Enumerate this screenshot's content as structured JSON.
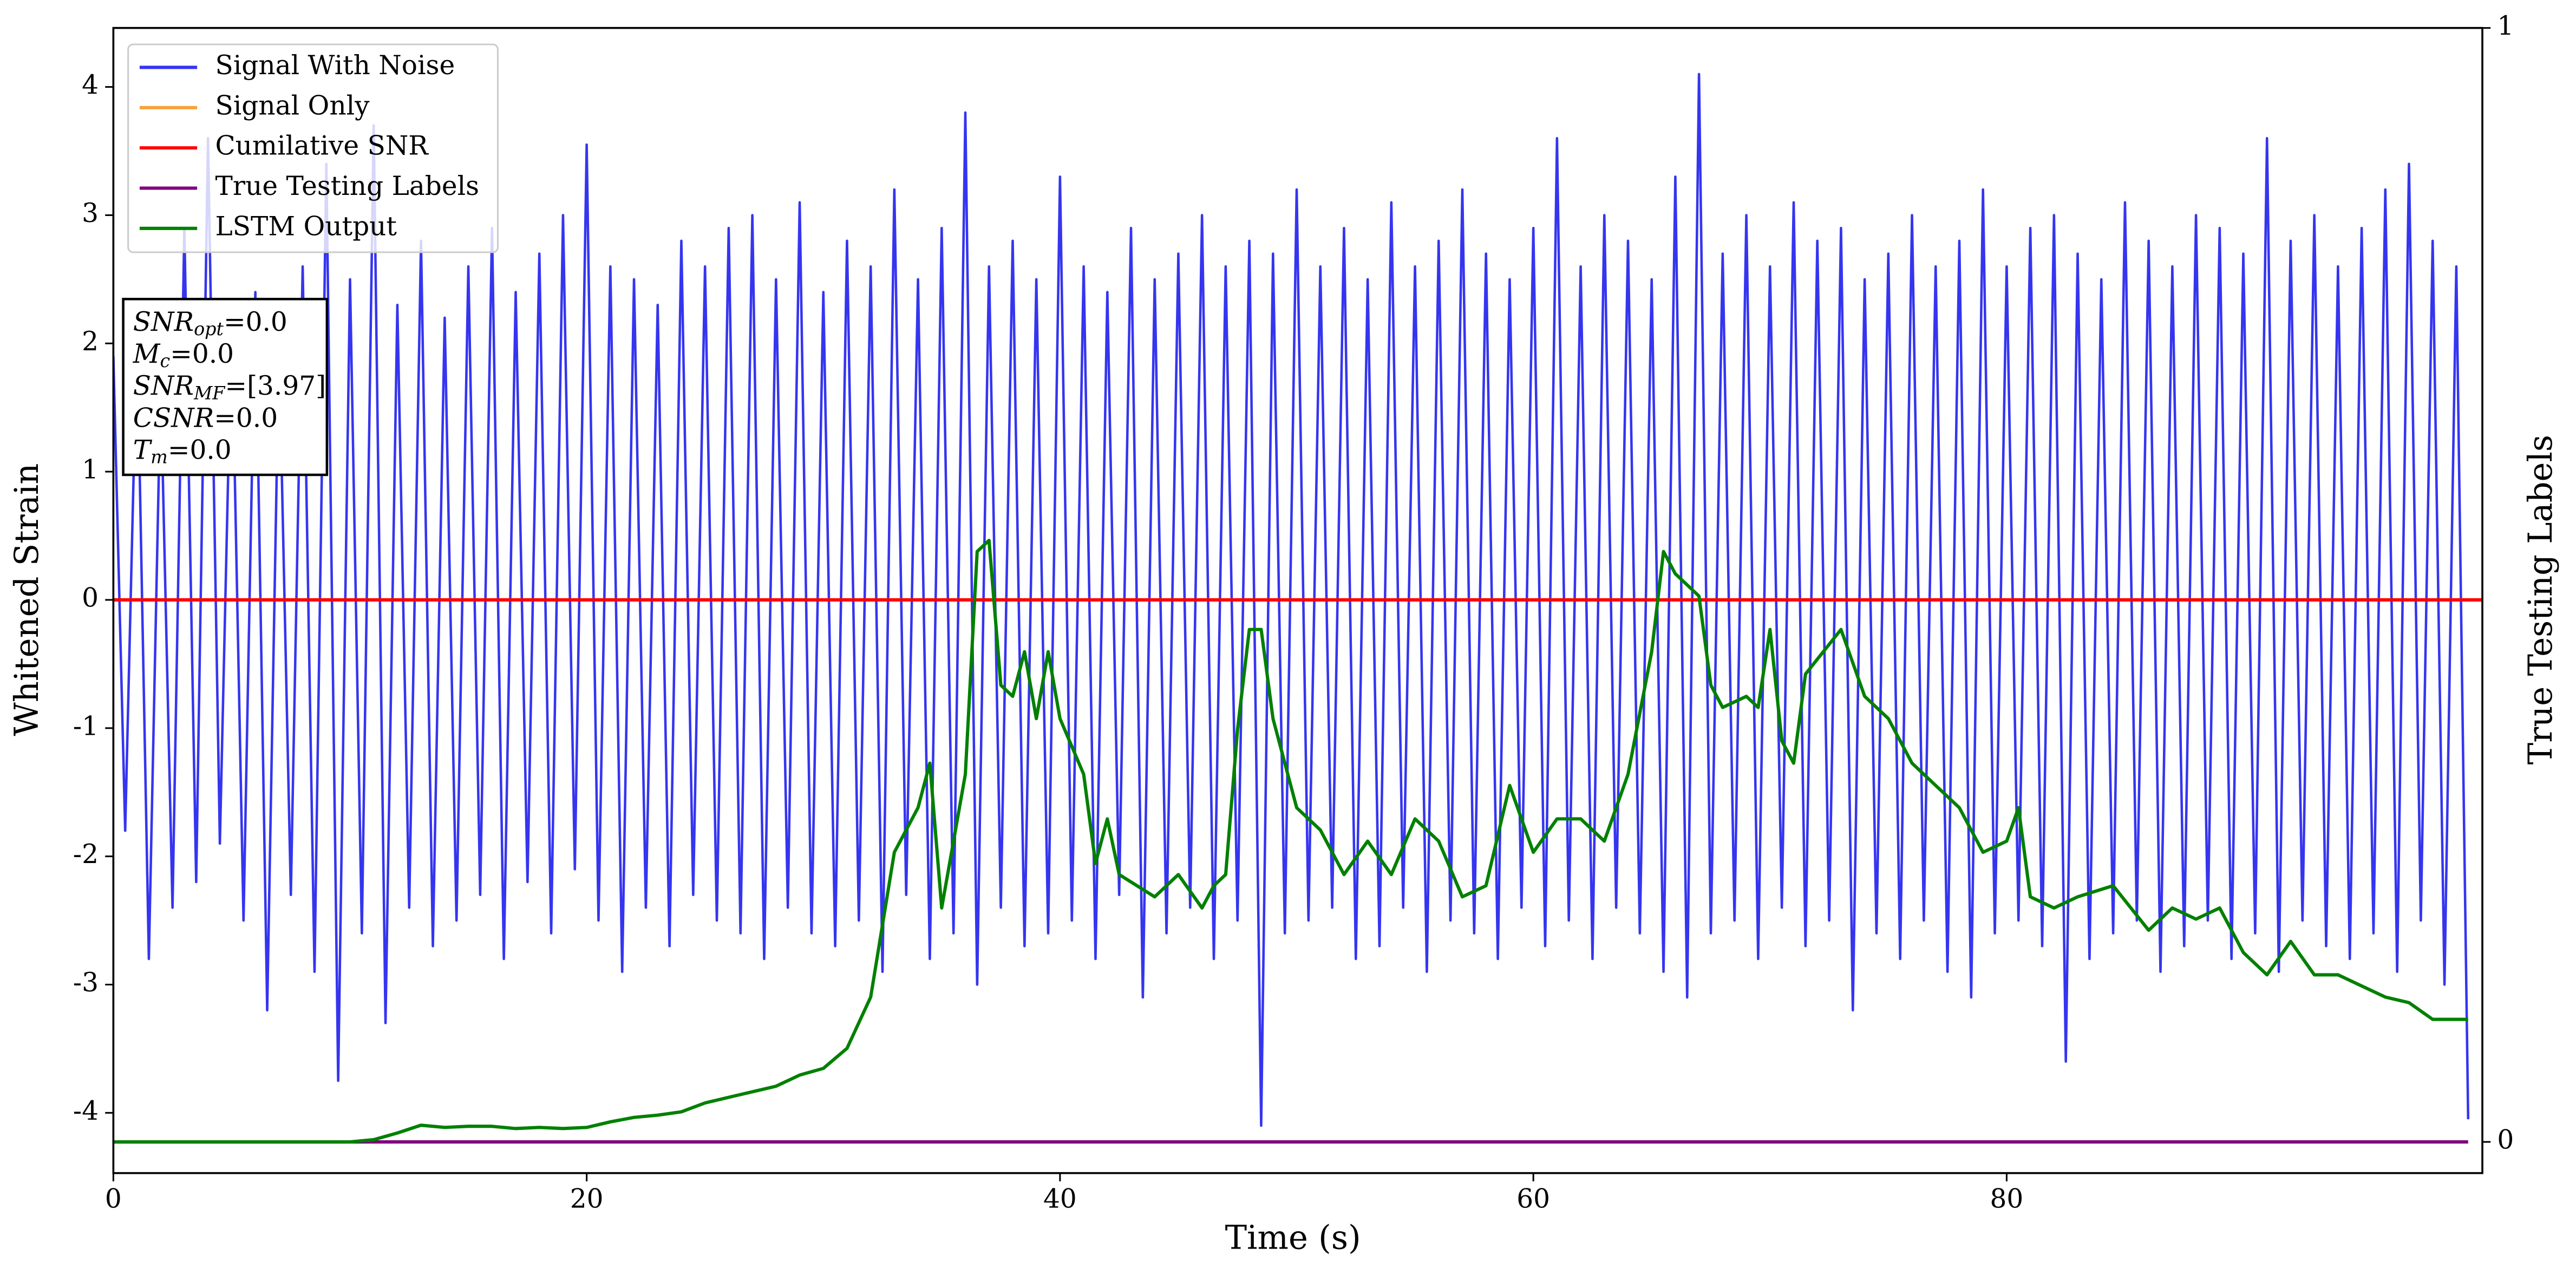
{
  "chart_data": {
    "type": "line",
    "xlabel": "Time (s)",
    "ylabel": "Whitened Strain",
    "y2label": "True Testing Labels",
    "xlim": [
      0,
      100.1
    ],
    "ylim": [
      -4.47,
      4.46
    ],
    "y2lim": [
      -0.028,
      1
    ],
    "xticks": [
      0,
      20,
      40,
      60,
      80
    ],
    "yticks": [
      -4,
      -3,
      -2,
      -1,
      0,
      1,
      2,
      3,
      4
    ],
    "y2ticks": [
      0,
      1
    ],
    "legend": "upper left",
    "annotations": [
      {
        "symbol": "SNR",
        "subscript": "opt",
        "text": "=0.0"
      },
      {
        "symbol": "M",
        "subscript": "c",
        "text": "=0.0"
      },
      {
        "symbol": "SNR",
        "subscript": "MF",
        "text": "=[3.97]"
      },
      {
        "symbol": "CSNR",
        "text": "=0.0"
      },
      {
        "symbol": "T",
        "subscript": "m",
        "text": "=0.0"
      }
    ],
    "series": [
      {
        "name": "Signal With Noise",
        "color": "#3535f0",
        "x": [
          0,
          0.5,
          1,
          1.5,
          2,
          2.5,
          3,
          3.5,
          4,
          4.5,
          5,
          5.5,
          6,
          6.5,
          7,
          7.5,
          8,
          8.5,
          9,
          9.5,
          10,
          10.5,
          11,
          11.5,
          12,
          12.5,
          13,
          13.5,
          14,
          14.5,
          15,
          15.5,
          16,
          16.5,
          17,
          17.5,
          18,
          18.5,
          19,
          19.5,
          20,
          20.5,
          21,
          21.5,
          22,
          22.5,
          23,
          23.5,
          24,
          24.5,
          25,
          25.5,
          26,
          26.5,
          27,
          27.5,
          28,
          28.5,
          29,
          29.5,
          30,
          30.5,
          31,
          31.5,
          32,
          32.5,
          33,
          33.5,
          34,
          34.5,
          35,
          35.5,
          36,
          36.5,
          37,
          37.5,
          38,
          38.5,
          39,
          39.5,
          40,
          40.5,
          41,
          41.5,
          42,
          42.5,
          43,
          43.5,
          44,
          44.5,
          45,
          45.5,
          46,
          46.5,
          47,
          47.5,
          48,
          48.5,
          49,
          49.5,
          50,
          50.5,
          51,
          51.5,
          52,
          52.5,
          53,
          53.5,
          54,
          54.5,
          55,
          55.5,
          56,
          56.5,
          57,
          57.5,
          58,
          58.5,
          59,
          59.5,
          60,
          60.5,
          61,
          61.5,
          62,
          62.5,
          63,
          63.5,
          64,
          64.5,
          65,
          65.5,
          66,
          66.5,
          67,
          67.5,
          68,
          68.5,
          69,
          69.5,
          70,
          70.5,
          71,
          71.5,
          72,
          72.5,
          73,
          73.5,
          74,
          74.5,
          75,
          75.5,
          76,
          76.5,
          77,
          77.5,
          78,
          78.5,
          79,
          79.5,
          80,
          80.5,
          81,
          81.5,
          82,
          82.5,
          83,
          83.5,
          84,
          84.5,
          85,
          85.5,
          86,
          86.5,
          87,
          87.5,
          88,
          88.5,
          89,
          89.5,
          90,
          90.5,
          91,
          91.5,
          92,
          92.5,
          93,
          93.5,
          94,
          94.5,
          95,
          95.5,
          96,
          96.5,
          97,
          97.5,
          98,
          98.5,
          99,
          99.5
        ],
        "values": [
          1.9,
          -1.8,
          2.1,
          -2.8,
          1.7,
          -2.4,
          2.9,
          -2.2,
          3.6,
          -1.9,
          2.2,
          -2.5,
          2.4,
          -3.2,
          2.0,
          -2.3,
          2.6,
          -2.9,
          3.4,
          -3.75,
          2.5,
          -2.6,
          3.7,
          -3.3,
          2.3,
          -2.4,
          2.8,
          -2.7,
          2.2,
          -2.5,
          2.6,
          -2.3,
          2.9,
          -2.8,
          2.4,
          -2.2,
          2.7,
          -2.6,
          3.0,
          -2.1,
          3.55,
          -2.5,
          2.6,
          -2.9,
          2.5,
          -2.4,
          2.3,
          -2.7,
          2.8,
          -2.3,
          2.6,
          -2.5,
          2.9,
          -2.6,
          3.0,
          -2.8,
          2.5,
          -2.4,
          3.1,
          -2.6,
          2.4,
          -2.7,
          2.8,
          -2.5,
          2.6,
          -2.9,
          3.2,
          -2.3,
          2.5,
          -2.8,
          2.9,
          -2.6,
          3.8,
          -3.0,
          2.6,
          -2.4,
          2.8,
          -2.7,
          2.5,
          -2.6,
          3.3,
          -2.5,
          2.6,
          -2.8,
          2.4,
          -2.3,
          2.9,
          -3.1,
          2.5,
          -2.6,
          2.7,
          -2.4,
          3.0,
          -2.8,
          2.6,
          -2.5,
          2.8,
          -4.1,
          2.7,
          -2.6,
          3.2,
          -2.5,
          2.6,
          -2.4,
          2.9,
          -2.8,
          2.5,
          -2.7,
          3.1,
          -2.4,
          2.6,
          -2.9,
          2.8,
          -2.5,
          3.2,
          -2.6,
          2.7,
          -2.8,
          2.5,
          -2.4,
          2.9,
          -2.7,
          3.6,
          -2.5,
          2.6,
          -2.8,
          3.0,
          -2.4,
          2.8,
          -2.6,
          2.5,
          -2.9,
          3.3,
          -3.1,
          4.1,
          -2.6,
          2.7,
          -2.5,
          3.0,
          -2.8,
          2.6,
          -2.4,
          3.1,
          -2.7,
          2.8,
          -2.5,
          2.9,
          -3.2,
          2.5,
          -2.6,
          2.7,
          -2.8,
          3.0,
          -2.5,
          2.6,
          -2.9,
          2.8,
          -3.1,
          3.2,
          -2.6,
          2.6,
          -2.5,
          2.9,
          -2.7,
          3.0,
          -3.6,
          2.7,
          -2.8,
          2.5,
          -2.6,
          3.1,
          -2.5,
          2.8,
          -2.9,
          2.6,
          -2.7,
          3.0,
          -2.5,
          2.9,
          -2.8,
          2.7,
          -2.6,
          3.6,
          -2.9,
          2.8,
          -2.5,
          3.0,
          -2.7,
          2.6,
          -2.8,
          2.9,
          -2.6,
          3.2,
          -2.9,
          3.4,
          -2.5,
          2.8,
          -3.0,
          2.6,
          -4.05
        ]
      },
      {
        "name": "Signal Only",
        "color": "#f5a33a",
        "x": [
          0,
          100.1
        ],
        "values": [
          0,
          0
        ]
      },
      {
        "name": "Cumilative SNR",
        "color": "#ff0000",
        "x": [
          0,
          100.1
        ],
        "values": [
          0,
          0
        ]
      },
      {
        "name": "True Testing Labels",
        "color": "#800080",
        "axis": "y2",
        "x": [
          0,
          99.5
        ],
        "values": [
          0,
          0
        ]
      },
      {
        "name": "LSTM Output",
        "color": "#008000",
        "axis": "y2",
        "x": [
          0,
          5,
          10,
          11,
          12,
          13,
          14,
          15,
          16,
          17,
          18,
          19,
          20,
          21,
          22,
          23,
          24,
          25,
          26,
          27,
          28,
          29,
          30,
          31,
          32,
          33,
          34,
          34.5,
          35,
          36,
          36.5,
          37,
          37.5,
          38,
          38.5,
          39,
          39.5,
          40,
          41,
          41.5,
          42,
          42.5,
          44,
          45,
          46,
          46.5,
          47,
          47.5,
          48,
          48.5,
          49,
          50,
          51,
          52,
          53,
          54,
          55,
          56,
          57,
          58,
          59,
          60,
          61,
          62,
          63,
          64,
          65,
          65.5,
          66,
          67,
          67.5,
          68,
          69,
          69.5,
          70,
          70.5,
          71,
          71.5,
          73,
          74,
          75,
          76,
          77,
          78,
          79,
          80,
          80.5,
          81,
          82,
          83,
          84.5,
          86,
          87,
          88,
          89,
          90,
          91,
          92,
          93,
          94,
          95,
          96,
          97,
          98,
          99,
          99.5
        ],
        "values": [
          0,
          0,
          0,
          0.002,
          0.008,
          0.015,
          0.013,
          0.014,
          0.014,
          0.012,
          0.013,
          0.012,
          0.013,
          0.018,
          0.022,
          0.024,
          0.027,
          0.035,
          0.04,
          0.045,
          0.05,
          0.06,
          0.066,
          0.084,
          0.13,
          0.26,
          0.3,
          0.34,
          0.21,
          0.33,
          0.53,
          0.54,
          0.41,
          0.4,
          0.44,
          0.38,
          0.44,
          0.38,
          0.33,
          0.25,
          0.29,
          0.24,
          0.22,
          0.24,
          0.21,
          0.23,
          0.24,
          0.37,
          0.46,
          0.46,
          0.38,
          0.3,
          0.28,
          0.24,
          0.27,
          0.24,
          0.29,
          0.27,
          0.22,
          0.23,
          0.32,
          0.26,
          0.29,
          0.29,
          0.27,
          0.33,
          0.44,
          0.53,
          0.51,
          0.49,
          0.41,
          0.39,
          0.4,
          0.39,
          0.46,
          0.36,
          0.34,
          0.42,
          0.46,
          0.4,
          0.38,
          0.34,
          0.32,
          0.3,
          0.26,
          0.27,
          0.3,
          0.22,
          0.21,
          0.22,
          0.23,
          0.19,
          0.21,
          0.2,
          0.21,
          0.17,
          0.15,
          0.18,
          0.15,
          0.15,
          0.14,
          0.13,
          0.125,
          0.11,
          0.11,
          0.11
        ]
      }
    ]
  }
}
